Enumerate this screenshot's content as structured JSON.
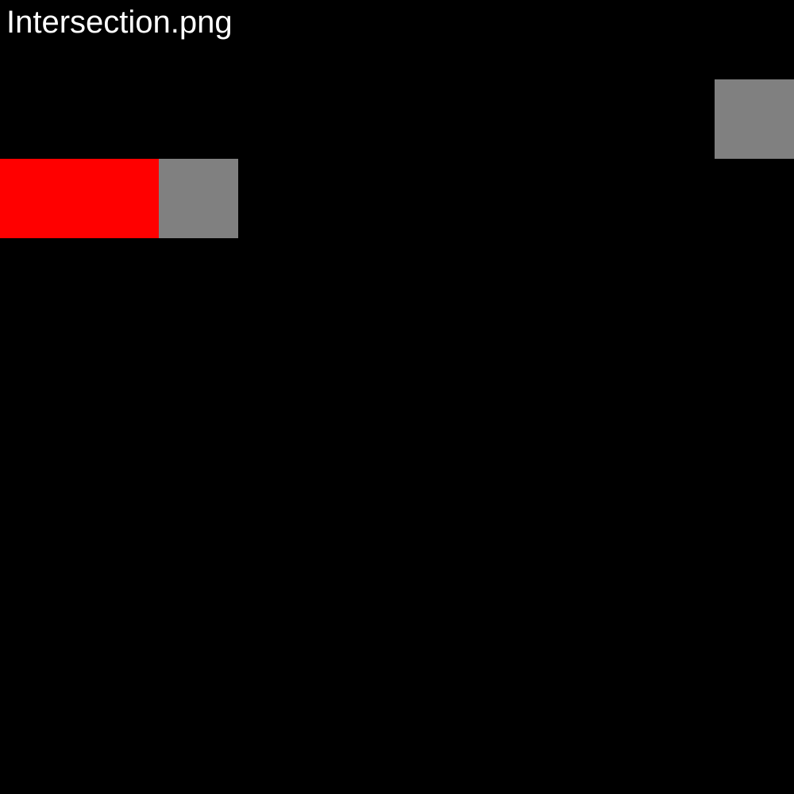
{
  "title": "Intersection.png",
  "colors": {
    "background": "#000000",
    "title_text": "#ffffff",
    "red_block": "#ff0000",
    "gray_block": "#808080"
  }
}
